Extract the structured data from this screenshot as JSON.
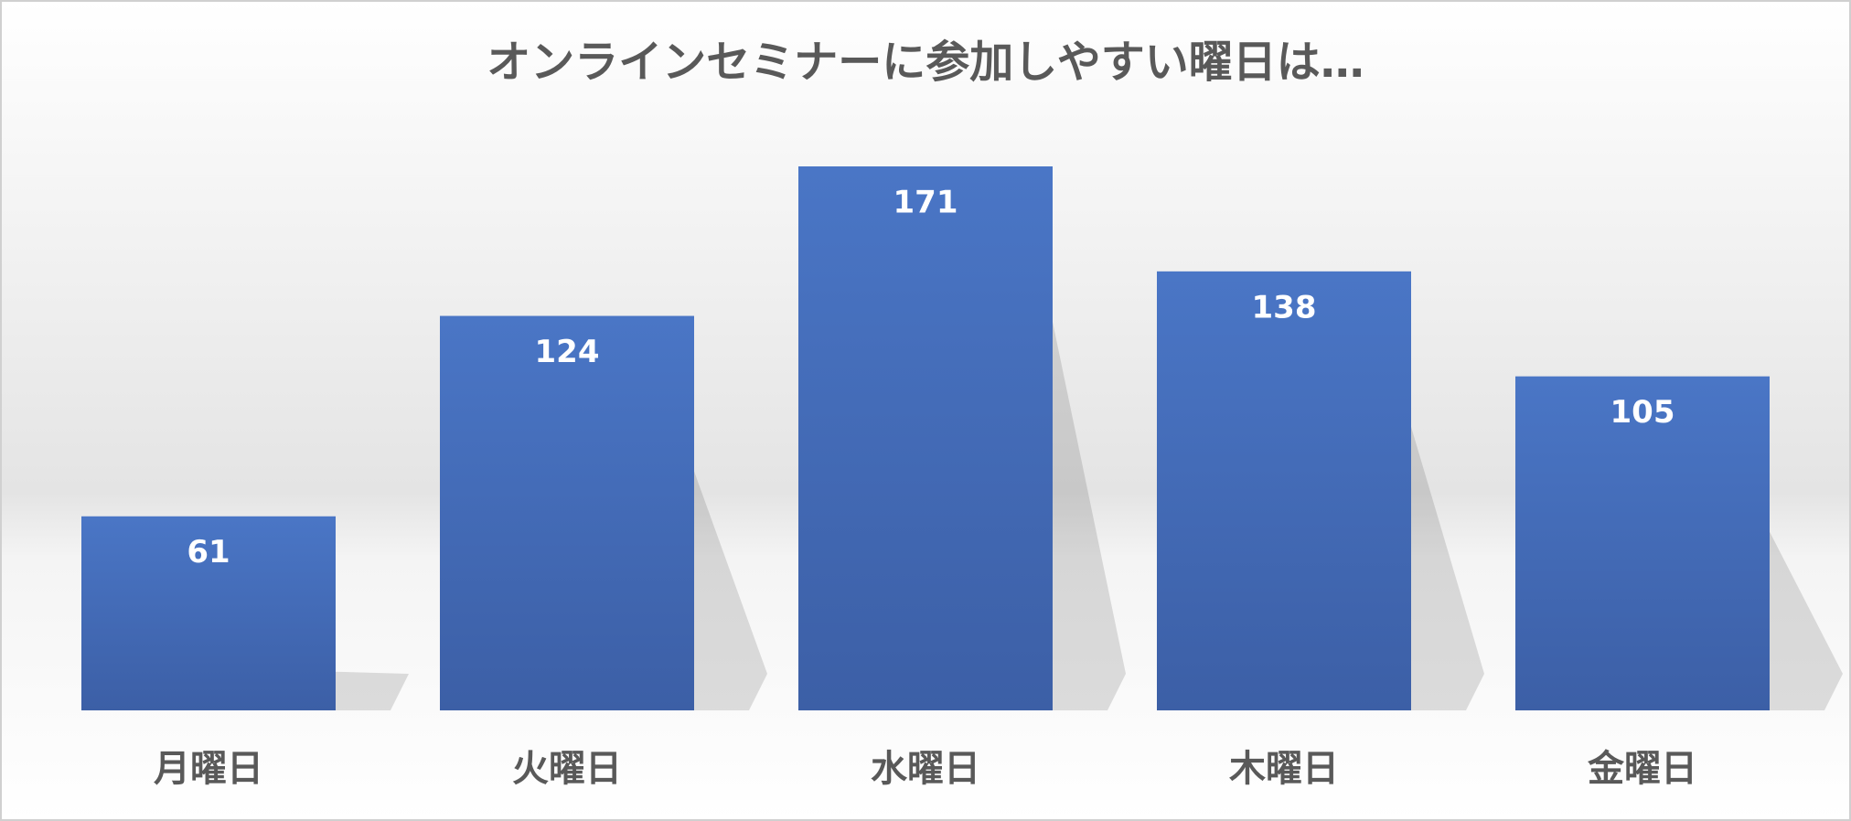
{
  "chart_data": {
    "type": "bar",
    "title": "オンラインセミナーに参加しやすい曜日は…",
    "categories": [
      "月曜日",
      "火曜日",
      "水曜日",
      "木曜日",
      "金曜日"
    ],
    "values": [
      61,
      124,
      171,
      138,
      105
    ],
    "color": "#4472c4"
  }
}
